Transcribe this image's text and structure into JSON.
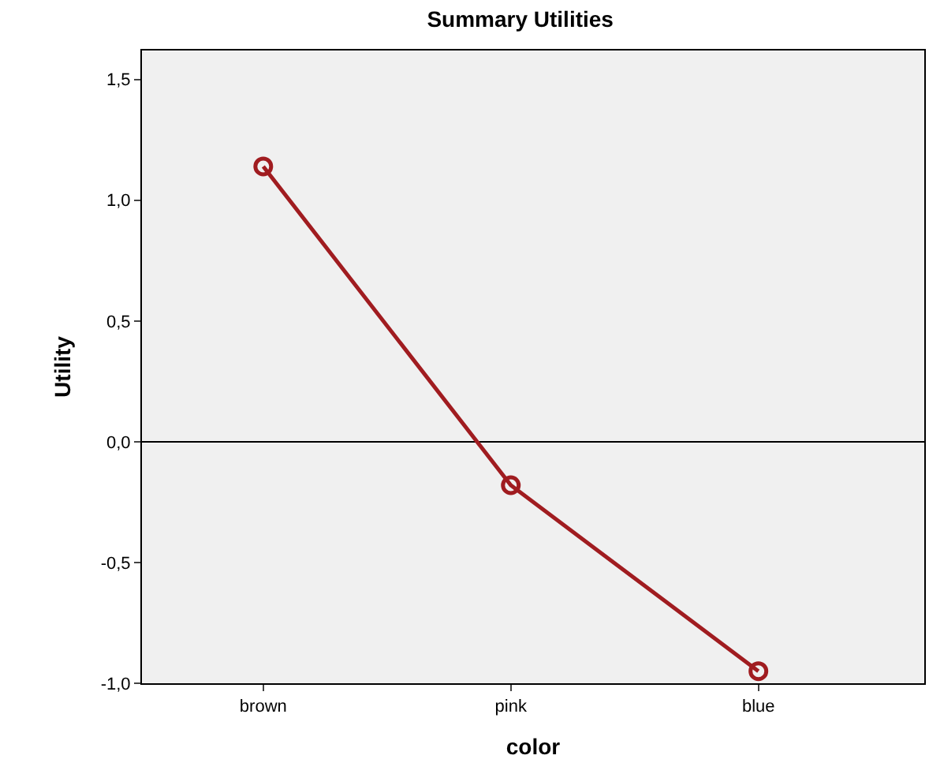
{
  "chart_data": {
    "type": "line",
    "title": "Summary Utilities",
    "xlabel": "color",
    "ylabel": "Utility",
    "categories": [
      "brown",
      "pink",
      "blue"
    ],
    "series": [
      {
        "color": "#a01c20",
        "values": [
          1.14,
          -0.18,
          -0.95
        ]
      }
    ],
    "ylim": [
      -1.0,
      1.62
    ],
    "yticks": [
      {
        "value": -1.0,
        "label": "-1,0"
      },
      {
        "value": -0.5,
        "label": "-0,5"
      },
      {
        "value": 0.0,
        "label": "0,0"
      },
      {
        "value": 0.5,
        "label": "0,5"
      },
      {
        "value": 1.0,
        "label": "1,0"
      },
      {
        "value": 1.5,
        "label": "1,5"
      }
    ],
    "ref_lines": [
      {
        "axis": "y",
        "value": 0.0,
        "color": "#000000"
      }
    ],
    "grid": false,
    "marker": "circle",
    "line_style": "solid"
  }
}
